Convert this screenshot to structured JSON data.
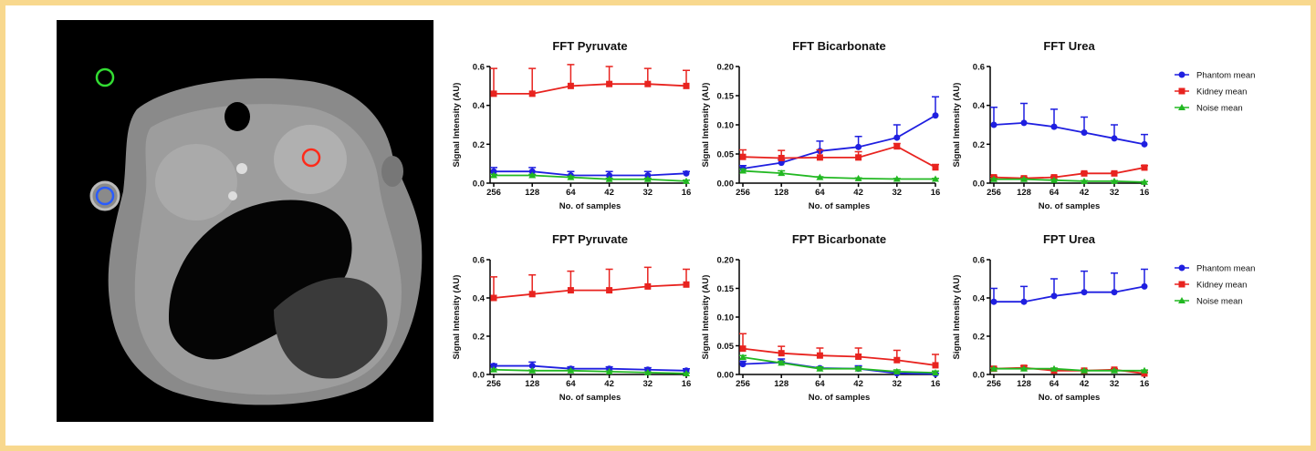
{
  "chart_data": [
    {
      "type": "line",
      "title": "FFT Pyruvate",
      "categories": [
        "256",
        "128",
        "64",
        "42",
        "32",
        "16"
      ],
      "ylabel": "Signal Intensity (AU)",
      "xlabel": "No. of samples",
      "ylim": [
        0,
        0.6
      ],
      "yticks": [
        {
          "value": 0,
          "label": "0.0"
        },
        {
          "value": 0.2,
          "label": "0.2"
        },
        {
          "value": 0.4,
          "label": "0.4"
        },
        {
          "value": 0.6,
          "label": "0.6"
        }
      ],
      "series": [
        {
          "color": "#1f1fe0",
          "marker": "circle",
          "values": [
            0.06,
            0.06,
            0.04,
            0.04,
            0.04,
            0.05
          ],
          "errors": [
            0.02,
            0.02,
            0.02,
            0.02,
            0.02,
            0.01
          ]
        },
        {
          "color": "#e8231f",
          "marker": "square",
          "values": [
            0.46,
            0.46,
            0.5,
            0.51,
            0.51,
            0.5
          ],
          "errors": [
            0.13,
            0.13,
            0.11,
            0.09,
            0.08,
            0.08
          ]
        },
        {
          "color": "#22b822",
          "marker": "triangle",
          "values": [
            0.04,
            0.04,
            0.03,
            0.02,
            0.02,
            0.01
          ],
          "errors": [
            0.005,
            0.005,
            0.005,
            0.005,
            0.005,
            0.005
          ]
        }
      ]
    },
    {
      "type": "line",
      "title": "FFT Bicarbonate",
      "categories": [
        "256",
        "128",
        "64",
        "42",
        "32",
        "16"
      ],
      "ylabel": "Signal Intensity (AU)",
      "xlabel": "No. of samples",
      "ylim": [
        0,
        0.2
      ],
      "yticks": [
        {
          "value": 0,
          "label": "0.00"
        },
        {
          "value": 0.05,
          "label": "0.05"
        },
        {
          "value": 0.1,
          "label": "0.10"
        },
        {
          "value": 0.15,
          "label": "0.15"
        },
        {
          "value": 0.2,
          "label": "0.20"
        }
      ],
      "series": [
        {
          "color": "#1f1fe0",
          "marker": "circle",
          "values": [
            0.025,
            0.035,
            0.055,
            0.062,
            0.078,
            0.116
          ],
          "errors": [
            0.005,
            0.005,
            0.017,
            0.018,
            0.022,
            0.032
          ]
        },
        {
          "color": "#e8231f",
          "marker": "square",
          "values": [
            0.045,
            0.043,
            0.044,
            0.044,
            0.063,
            0.027
          ],
          "errors": [
            0.012,
            0.013,
            0.013,
            0.01,
            0.005,
            0.005
          ]
        },
        {
          "color": "#22b822",
          "marker": "triangle",
          "values": [
            0.021,
            0.017,
            0.01,
            0.008,
            0.007,
            0.007
          ],
          "errors": [
            0.003,
            0.004,
            0.001,
            0.001,
            0.001,
            0.001
          ]
        }
      ]
    },
    {
      "type": "line",
      "title": "FFT Urea",
      "categories": [
        "256",
        "128",
        "64",
        "42",
        "32",
        "16"
      ],
      "ylabel": "Signal Intensity (AU)",
      "xlabel": "No. of samples",
      "ylim": [
        0,
        0.6
      ],
      "legend": "right",
      "yticks": [
        {
          "value": 0,
          "label": "0.0"
        },
        {
          "value": 0.2,
          "label": "0.2"
        },
        {
          "value": 0.4,
          "label": "0.4"
        },
        {
          "value": 0.6,
          "label": "0.6"
        }
      ],
      "series": [
        {
          "name": "Phantom mean",
          "color": "#1f1fe0",
          "marker": "circle",
          "values": [
            0.3,
            0.31,
            0.29,
            0.26,
            0.23,
            0.2
          ],
          "errors": [
            0.09,
            0.1,
            0.09,
            0.08,
            0.07,
            0.05
          ]
        },
        {
          "name": "Kidney mean",
          "color": "#e8231f",
          "marker": "square",
          "values": [
            0.03,
            0.025,
            0.03,
            0.05,
            0.05,
            0.08
          ],
          "errors": [
            0.005,
            0.005,
            0.005,
            0.005,
            0.005,
            0.01
          ]
        },
        {
          "name": "Noise mean",
          "color": "#22b822",
          "marker": "triangle",
          "values": [
            0.02,
            0.02,
            0.015,
            0.01,
            0.01,
            0.005
          ],
          "errors": [
            0.003,
            0.003,
            0.003,
            0.003,
            0.003,
            0.003
          ]
        }
      ]
    },
    {
      "type": "line",
      "title": "FPT Pyruvate",
      "categories": [
        "256",
        "128",
        "64",
        "42",
        "32",
        "16"
      ],
      "ylabel": "Signal Intensity (AU)",
      "xlabel": "No. of samples",
      "ylim": [
        0,
        0.6
      ],
      "yticks": [
        {
          "value": 0,
          "label": "0.0"
        },
        {
          "value": 0.2,
          "label": "0.2"
        },
        {
          "value": 0.4,
          "label": "0.4"
        },
        {
          "value": 0.6,
          "label": "0.6"
        }
      ],
      "series": [
        {
          "color": "#1f1fe0",
          "marker": "circle",
          "values": [
            0.045,
            0.045,
            0.03,
            0.03,
            0.025,
            0.02
          ],
          "errors": [
            0.01,
            0.02,
            0.01,
            0.01,
            0.01,
            0.01
          ]
        },
        {
          "color": "#e8231f",
          "marker": "square",
          "values": [
            0.4,
            0.42,
            0.44,
            0.44,
            0.46,
            0.47
          ],
          "errors": [
            0.11,
            0.1,
            0.1,
            0.11,
            0.1,
            0.08
          ]
        },
        {
          "color": "#22b822",
          "marker": "triangle",
          "values": [
            0.025,
            0.02,
            0.02,
            0.015,
            0.01,
            0.005
          ],
          "errors": [
            0.003,
            0.003,
            0.003,
            0.003,
            0.003,
            0.003
          ]
        }
      ]
    },
    {
      "type": "line",
      "title": "FPT Bicarbonate",
      "categories": [
        "256",
        "128",
        "64",
        "42",
        "32",
        "16"
      ],
      "ylabel": "Signal Intensity (AU)",
      "xlabel": "No. of samples",
      "ylim": [
        0,
        0.2
      ],
      "yticks": [
        {
          "value": 0,
          "label": "0.00"
        },
        {
          "value": 0.05,
          "label": "0.05"
        },
        {
          "value": 0.1,
          "label": "0.10"
        },
        {
          "value": 0.15,
          "label": "0.15"
        },
        {
          "value": 0.2,
          "label": "0.20"
        }
      ],
      "series": [
        {
          "color": "#1f1fe0",
          "marker": "circle",
          "values": [
            0.018,
            0.021,
            0.011,
            0.01,
            0.002,
            0.001
          ],
          "errors": [
            0.005,
            0.006,
            0.002,
            0.005,
            0.003,
            0.001
          ]
        },
        {
          "color": "#e8231f",
          "marker": "square",
          "values": [
            0.045,
            0.037,
            0.033,
            0.031,
            0.025,
            0.016
          ],
          "errors": [
            0.026,
            0.012,
            0.013,
            0.015,
            0.017,
            0.019
          ]
        },
        {
          "color": "#22b822",
          "marker": "triangle",
          "values": [
            0.03,
            0.02,
            0.01,
            0.01,
            0.005,
            0.003
          ],
          "errors": [
            0.003,
            0.003,
            0.003,
            0.003,
            0.003,
            0.003
          ]
        }
      ]
    },
    {
      "type": "line",
      "title": "FPT Urea",
      "categories": [
        "256",
        "128",
        "64",
        "42",
        "32",
        "16"
      ],
      "ylabel": "Signal Intensity (AU)",
      "xlabel": "No. of samples",
      "ylim": [
        0,
        0.6
      ],
      "legend": "right",
      "yticks": [
        {
          "value": 0,
          "label": "0.0"
        },
        {
          "value": 0.2,
          "label": "0.2"
        },
        {
          "value": 0.4,
          "label": "0.4"
        },
        {
          "value": 0.6,
          "label": "0.6"
        }
      ],
      "series": [
        {
          "name": "Phantom mean",
          "color": "#1f1fe0",
          "marker": "circle",
          "values": [
            0.38,
            0.38,
            0.41,
            0.43,
            0.43,
            0.46
          ],
          "errors": [
            0.07,
            0.08,
            0.09,
            0.11,
            0.1,
            0.09
          ]
        },
        {
          "name": "Kidney mean",
          "color": "#e8231f",
          "marker": "square",
          "values": [
            0.03,
            0.035,
            0.02,
            0.02,
            0.025,
            0.005
          ],
          "errors": [
            0.005,
            0.01,
            0.005,
            0.005,
            0.005,
            0.005
          ]
        },
        {
          "name": "Noise mean",
          "color": "#22b822",
          "marker": "triangle",
          "values": [
            0.03,
            0.03,
            0.03,
            0.02,
            0.02,
            0.02
          ],
          "errors": [
            0.003,
            0.003,
            0.003,
            0.003,
            0.003,
            0.003
          ]
        }
      ]
    }
  ]
}
